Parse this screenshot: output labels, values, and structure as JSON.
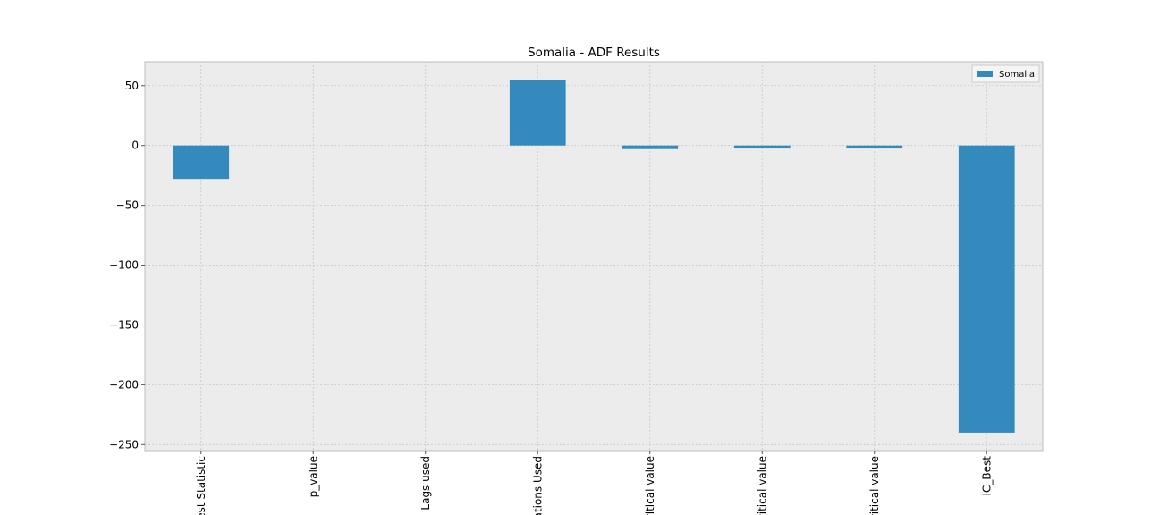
{
  "chart_data": {
    "type": "bar",
    "title": "Somalia - ADF Results",
    "xlabel": "",
    "ylabel": "",
    "categories": [
      "est Statistic",
      "p_value",
      "Lags used",
      "ations Used",
      "ritical value",
      "ritical value",
      "ritical value",
      "IC_Best"
    ],
    "series": [
      {
        "name": "Somalia",
        "values": [
          -28,
          0,
          0,
          55,
          -3,
          -2.5,
          -2.5,
          -240
        ]
      }
    ],
    "ylim": [
      -255,
      70
    ],
    "yticks": [
      50,
      0,
      -50,
      -100,
      -150,
      -200,
      -250
    ],
    "ytick_labels": [
      "50",
      "0",
      "−50",
      "−100",
      "−150",
      "−200",
      "−250"
    ],
    "grid": true,
    "legend_position": "top-right",
    "colors": {
      "bar": "#348abd",
      "plot_bg": "#ececec",
      "grid": "#c8c8c8",
      "frame": "#bcbcbc"
    }
  }
}
